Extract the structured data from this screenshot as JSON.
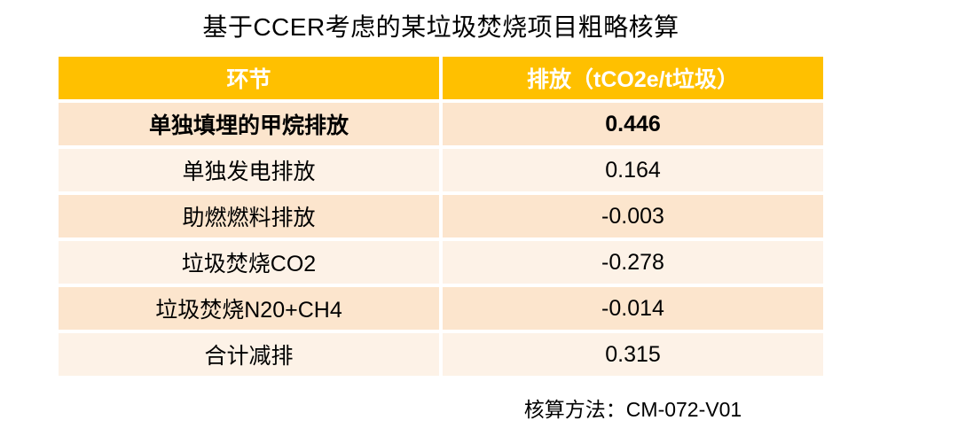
{
  "page": {
    "title": "基于CCER考虑的某垃圾焚烧项目粗略核算",
    "footer_note": "核算方法：CM-072-V01"
  },
  "table": {
    "columns": [
      "环节",
      "排放（tCO2e/t垃圾）"
    ],
    "rows": [
      {
        "label": "单独填埋的甲烷排放",
        "value": "0.446"
      },
      {
        "label": "单独发电排放",
        "value": "0.164"
      },
      {
        "label": "助燃燃料排放",
        "value": "-0.003"
      },
      {
        "label": "垃圾焚烧CO2",
        "value": "-0.278"
      },
      {
        "label": "垃圾焚烧N20+CH4",
        "value": "-0.014"
      },
      {
        "label": "合计减排",
        "value": "0.315"
      }
    ],
    "bold_row_index": 0
  },
  "colors": {
    "header_bg": "#FFC000",
    "header_text": "#FFFFFF",
    "row_band_dark": "#FCE5CD",
    "row_band_light": "#FDF2E7",
    "body_text": "#000000",
    "page_bg": "#FFFFFF"
  }
}
